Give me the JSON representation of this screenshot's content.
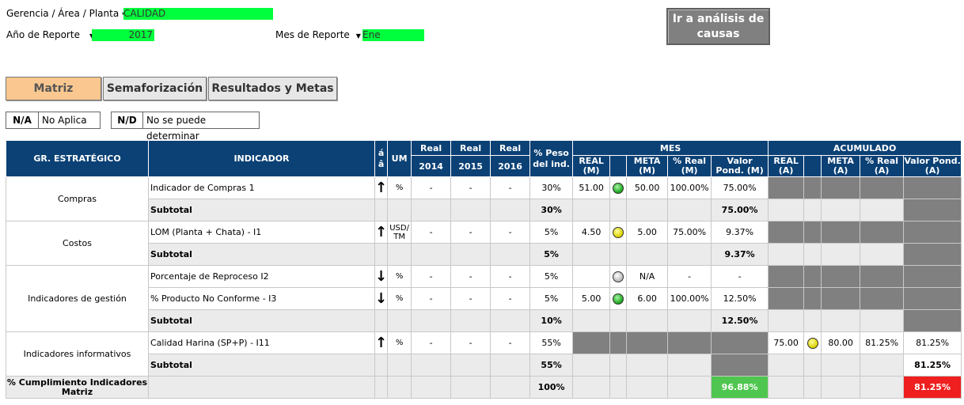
{
  "filters": {
    "gerencia_label": "Gerencia / Área / Planta",
    "gerencia_value": "CALIDAD",
    "anio_label": "Año de Reporte",
    "anio_value": "2017",
    "mes_label": "Mes de Reporte",
    "mes_value": "Ene",
    "dropdown_arrow": "▼"
  },
  "buttons": {
    "causas": "Ir a análisis de causas"
  },
  "tabs": [
    {
      "label": "Matriz",
      "active": true
    },
    {
      "label": "Semaforización",
      "active": false
    },
    {
      "label": "Resultados y Metas",
      "active": false
    }
  ],
  "legend": [
    {
      "key": "N/A",
      "value": "No  Aplica"
    },
    {
      "key": "N/D",
      "value": "No se puede determinar"
    }
  ],
  "headers": {
    "gr": "GR. ESTRATÉGICO",
    "indicador": "INDICADOR",
    "sort_a": "á",
    "sort_b": "â",
    "um": "UM",
    "real": "Real",
    "y2014": "2014",
    "y2015": "2015",
    "y2016": "2016",
    "peso": "% Peso del ind.",
    "mes": "MES",
    "acum": "ACUMULADO",
    "real_m": "REAL (M)",
    "meta_m": "META (M)",
    "pct_m": "% Real (M)",
    "vp_m": "Valor Pond. (M)",
    "real_a": "REAL (A)",
    "meta_a": "META (A)",
    "pct_a": "% Real (A)",
    "vp_a": "Valor Pond. (A)"
  },
  "groups": [
    {
      "name": "Compras",
      "rows": [
        {
          "indicador": "Indicador de Compras 1",
          "arrow": "up",
          "um": "%",
          "r2014": "-",
          "r2015": "-",
          "r2016": "-",
          "peso": "30%",
          "real_m": "51.00",
          "lamp_m": "green",
          "meta_m": "50.00",
          "pct_m": "100.00%",
          "vp_m": "75.00%",
          "acum_dark": true
        }
      ],
      "subtotal": {
        "label": "Subtotal",
        "peso": "30%",
        "vp_m": "75.00%"
      }
    },
    {
      "name": "Costos",
      "rows": [
        {
          "indicador": "LOM (Planta + Chata) - I1",
          "arrow": "up",
          "um": "USD/ TM",
          "r2014": "-",
          "r2015": "-",
          "r2016": "-",
          "peso": "5%",
          "real_m": "4.50",
          "lamp_m": "yellow",
          "meta_m": "5.00",
          "pct_m": "75.00%",
          "vp_m": "9.37%",
          "acum_dark": true
        }
      ],
      "subtotal": {
        "label": "Subtotal",
        "peso": "5%",
        "vp_m": "9.37%"
      }
    },
    {
      "name": "Indicadores de gestión",
      "rows": [
        {
          "indicador": "Porcentaje de Reproceso I2",
          "arrow": "down",
          "um": "%",
          "r2014": "-",
          "r2015": "-",
          "r2016": "-",
          "peso": "5%",
          "real_m": "",
          "lamp_m": "grey",
          "meta_m": "N/A",
          "pct_m": "-",
          "vp_m": "-",
          "acum_dark": true
        },
        {
          "indicador": "% Producto No Conforme - I3",
          "arrow": "down",
          "um": "%",
          "r2014": "-",
          "r2015": "-",
          "r2016": "-",
          "peso": "5%",
          "real_m": "5.00",
          "lamp_m": "green",
          "meta_m": "6.00",
          "pct_m": "100.00%",
          "vp_m": "12.50%",
          "acum_dark": true
        }
      ],
      "subtotal": {
        "label": "Subtotal",
        "peso": "10%",
        "vp_m": "12.50%"
      }
    },
    {
      "name": "Indicadores informativos",
      "rows": [
        {
          "indicador": "Calidad Harina (SP+P) - I11",
          "arrow": "up",
          "um": "%",
          "r2014": "-",
          "r2015": "-",
          "r2016": "-",
          "peso": "55%",
          "real_a": "75.00",
          "lamp_a": "yellow",
          "meta_a": "80.00",
          "pct_a": "81.25%",
          "vp_a": "81.25%"
        }
      ],
      "subtotal": {
        "label": "Subtotal",
        "peso": "55%",
        "vp_a": "81.25%"
      }
    }
  ],
  "total": {
    "label": "% Cumplimiento Indicadores Matriz",
    "peso": "100%",
    "vp_m": "96.88%",
    "vp_a": "81.25%"
  },
  "colors": {
    "header_bg": "#0b4175",
    "field_green": "#00ff3c",
    "good": "#4fc64f",
    "bad": "#ef1f1f",
    "tab_active": "#f9c78f"
  }
}
